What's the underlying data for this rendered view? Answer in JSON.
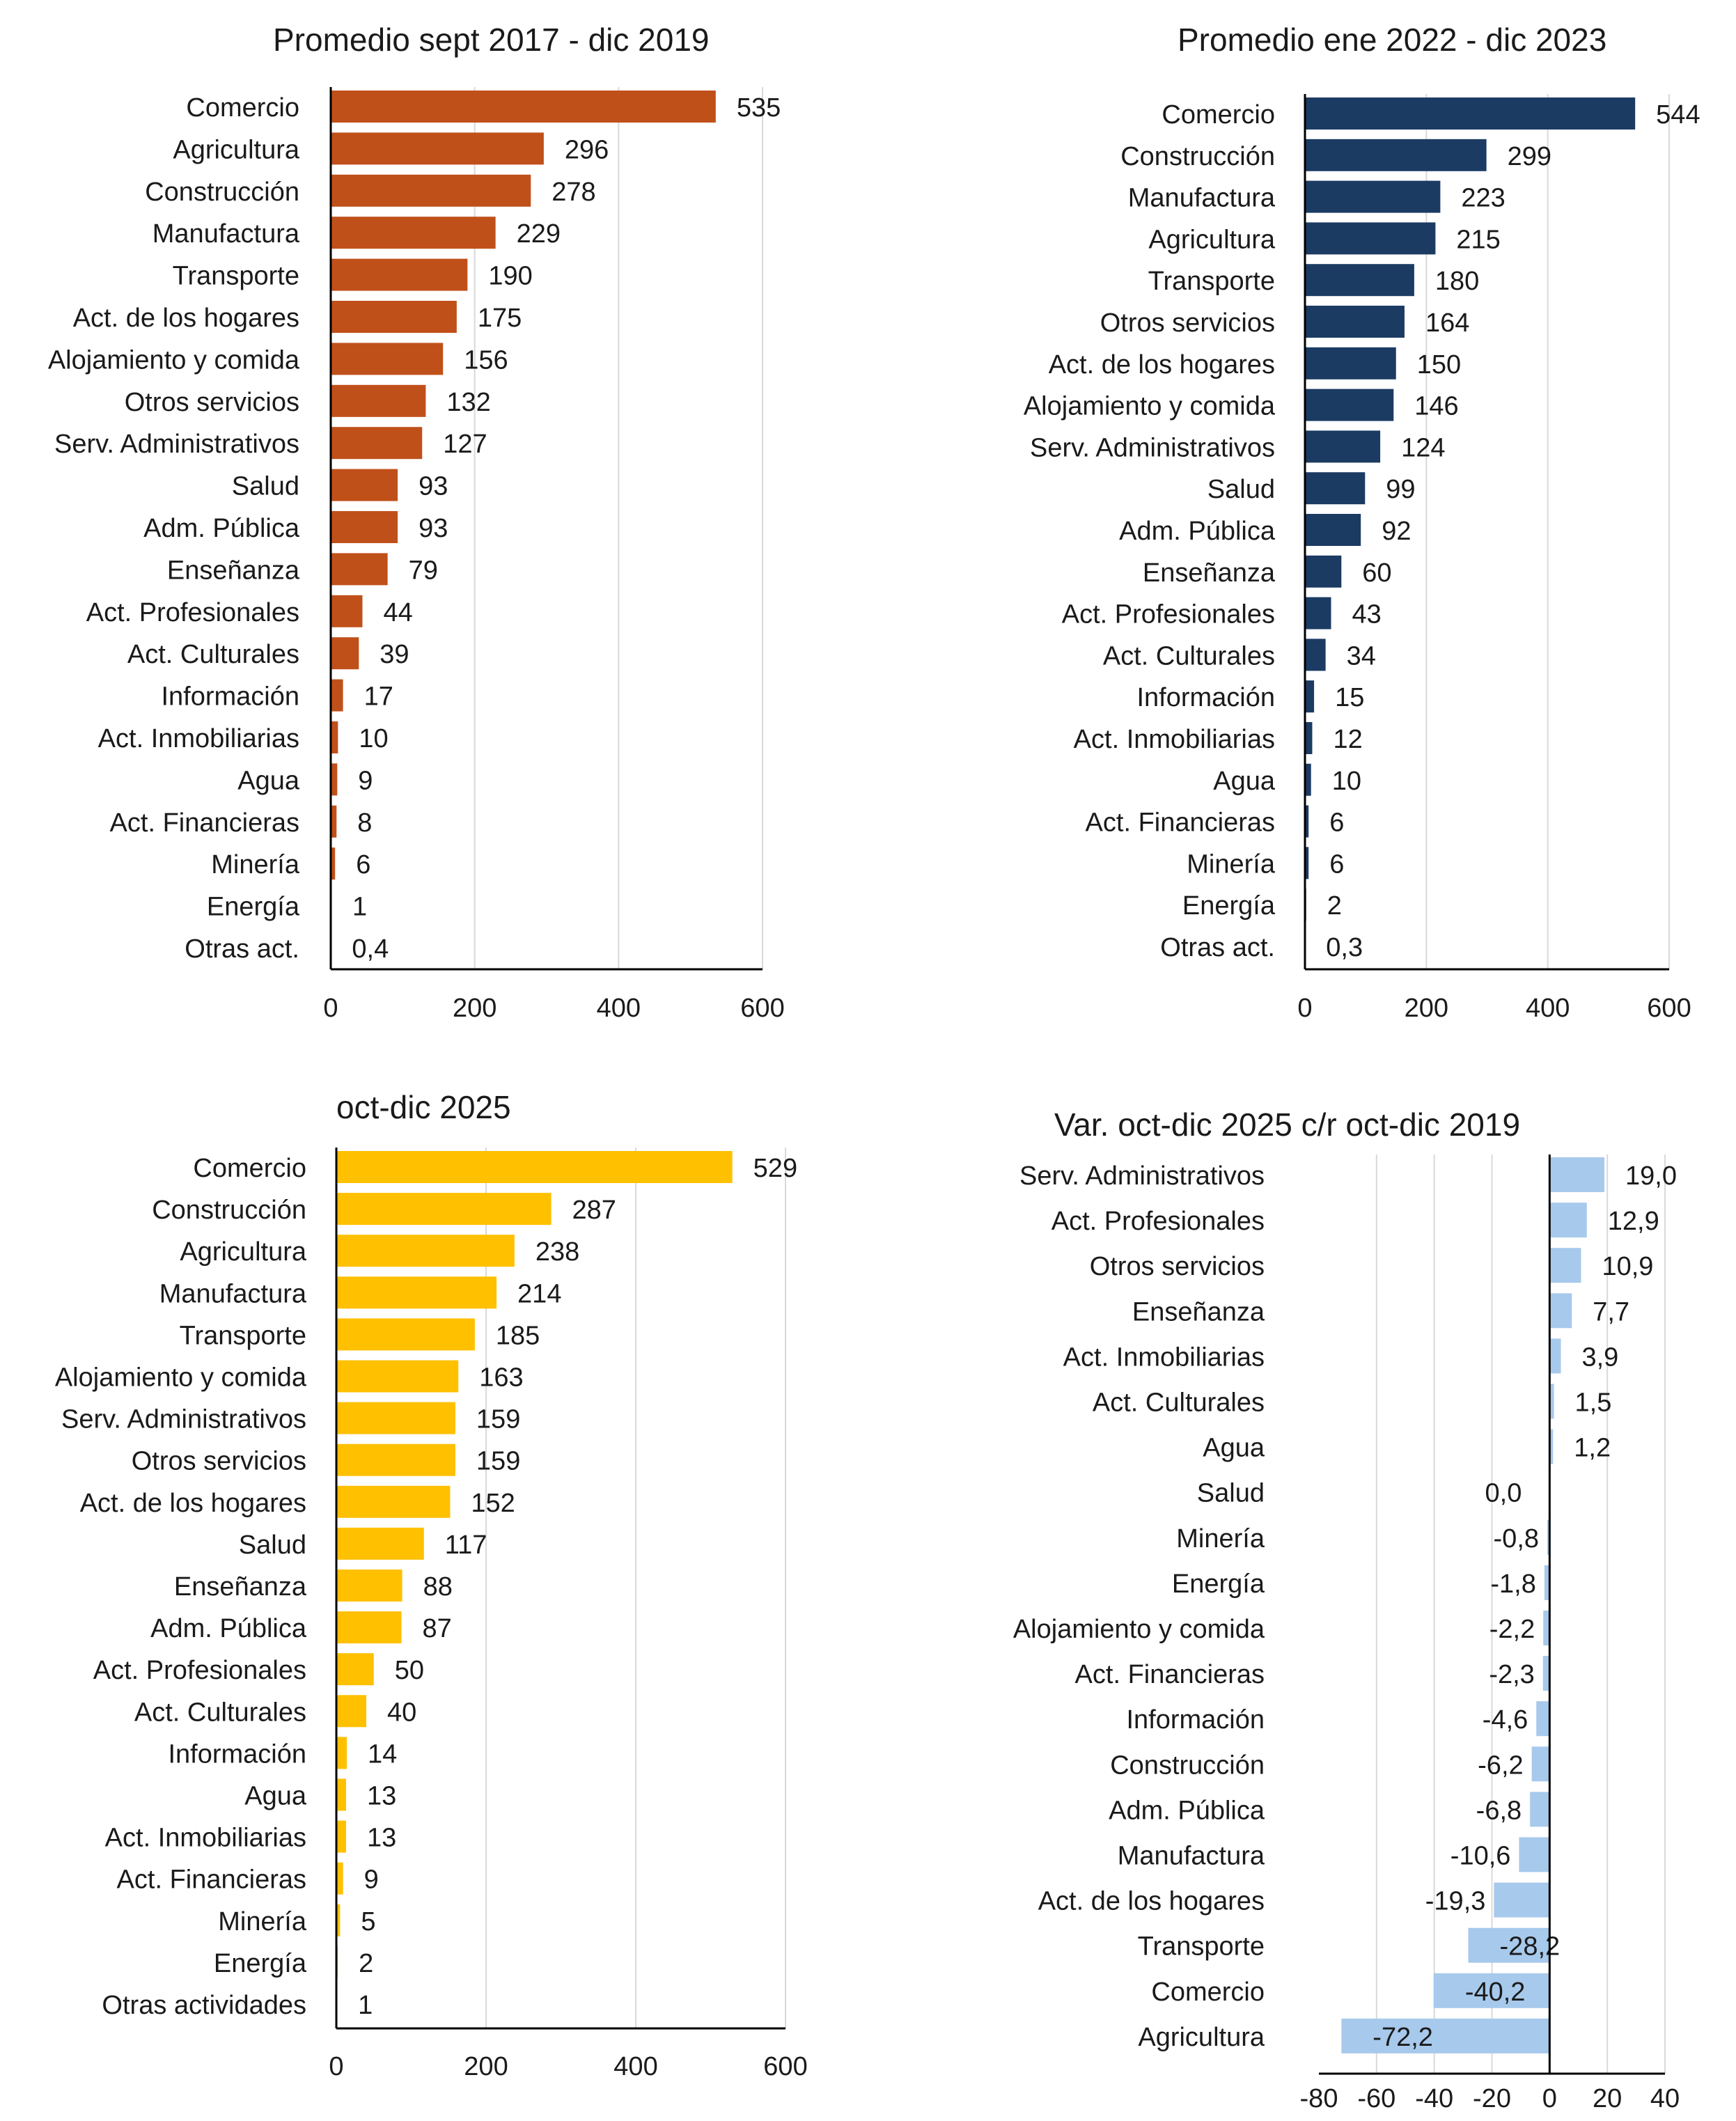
{
  "colors": {
    "panel1": "#c0501a",
    "panel2": "#1b3b63",
    "panel3": "#ffc000",
    "panel4": "#a7c9ec",
    "grid": "#d9d9d9",
    "axis": "#000000"
  },
  "chart_data": [
    {
      "type": "bar",
      "orientation": "horizontal",
      "title": "Promedio sept 2017 - dic 2019",
      "categories": [
        "Comercio",
        "Agricultura",
        "Construcción",
        "Manufactura",
        "Transporte",
        "Act. de los hogares",
        "Alojamiento y comida",
        "Otros servicios",
        "Serv. Administrativos",
        "Salud",
        "Adm. Pública",
        "Enseñanza",
        "Act. Profesionales",
        "Act. Culturales",
        "Información",
        "Act. Inmobiliarias",
        "Agua",
        "Act. Financieras",
        "Minería",
        "Energía",
        "Otras act."
      ],
      "values": [
        535,
        296,
        278,
        229,
        190,
        175,
        156,
        132,
        127,
        93,
        93,
        79,
        44,
        39,
        17,
        10,
        9,
        8,
        6,
        1,
        0.4
      ],
      "value_labels": [
        "535",
        "296",
        "278",
        "229",
        "190",
        "175",
        "156",
        "132",
        "127",
        "93",
        "93",
        "79",
        "44",
        "39",
        "17",
        "10",
        "9",
        "8",
        "6",
        "1",
        "0,4"
      ],
      "xlim": [
        0,
        600
      ],
      "ticks": [
        0,
        200,
        400,
        600
      ],
      "tick_labels": [
        "0",
        "200",
        "400",
        "600"
      ]
    },
    {
      "type": "bar",
      "orientation": "horizontal",
      "title": "Promedio ene 2022 - dic 2023",
      "categories": [
        "Comercio",
        "Construcción",
        "Manufactura",
        "Agricultura",
        "Transporte",
        "Otros servicios",
        "Act. de los hogares",
        "Alojamiento y comida",
        "Serv. Administrativos",
        "Salud",
        "Adm. Pública",
        "Enseñanza",
        "Act. Profesionales",
        "Act. Culturales",
        "Información",
        "Act. Inmobiliarias",
        "Agua",
        "Act. Financieras",
        "Minería",
        "Energía",
        "Otras act."
      ],
      "values": [
        544,
        299,
        223,
        215,
        180,
        164,
        150,
        146,
        124,
        99,
        92,
        60,
        43,
        34,
        15,
        12,
        10,
        6,
        6,
        2,
        0.3
      ],
      "value_labels": [
        "544",
        "299",
        "223",
        "215",
        "180",
        "164",
        "150",
        "146",
        "124",
        "99",
        "92",
        "60",
        "43",
        "34",
        "15",
        "12",
        "10",
        "6",
        "6",
        "2",
        "0,3"
      ],
      "xlim": [
        0,
        600
      ],
      "ticks": [
        0,
        200,
        400,
        600
      ],
      "tick_labels": [
        "0",
        "200",
        "400",
        "600"
      ]
    },
    {
      "type": "bar",
      "orientation": "horizontal",
      "title": "oct-dic 2025",
      "categories": [
        "Comercio",
        "Construcción",
        "Agricultura",
        "Manufactura",
        "Transporte",
        "Alojamiento y comida",
        "Serv. Administrativos",
        "Otros servicios",
        "Act. de los hogares",
        "Salud",
        "Enseñanza",
        "Adm. Pública",
        "Act. Profesionales",
        "Act. Culturales",
        "Información",
        "Agua",
        "Act. Inmobiliarias",
        "Act. Financieras",
        "Minería",
        "Energía",
        "Otras actividades"
      ],
      "values": [
        529,
        287,
        238,
        214,
        185,
        163,
        159,
        159,
        152,
        117,
        88,
        87,
        50,
        40,
        14,
        13,
        13,
        9,
        5,
        2,
        1
      ],
      "value_labels": [
        "529",
        "287",
        "238",
        "214",
        "185",
        "163",
        "159",
        "159",
        "152",
        "117",
        "88",
        "87",
        "50",
        "40",
        "14",
        "13",
        "13",
        "9",
        "5",
        "2",
        "1"
      ],
      "xlim": [
        0,
        600
      ],
      "ticks": [
        0,
        200,
        400,
        600
      ],
      "tick_labels": [
        "0",
        "200",
        "400",
        "600"
      ]
    },
    {
      "type": "bar",
      "orientation": "horizontal",
      "title": "Var. oct-dic 2025 c/r oct-dic 2019",
      "categories": [
        "Serv. Administrativos",
        "Act. Profesionales",
        "Otros servicios",
        "Enseñanza",
        "Act. Inmobiliarias",
        "Act. Culturales",
        "Agua",
        "Salud",
        "Minería",
        "Energía",
        "Alojamiento y comida",
        "Act. Financieras",
        "Información",
        "Construcción",
        "Adm. Pública",
        "Manufactura",
        "Act. de los hogares",
        "Transporte",
        "Comercio",
        "Agricultura"
      ],
      "values": [
        19.0,
        12.9,
        10.9,
        7.7,
        3.9,
        1.5,
        1.2,
        0.0,
        -0.8,
        -1.8,
        -2.2,
        -2.3,
        -4.6,
        -6.2,
        -6.8,
        -10.6,
        -19.3,
        -28.2,
        -40.2,
        -72.2
      ],
      "value_labels": [
        "19,0",
        "12,9",
        "10,9",
        "7,7",
        "3,9",
        "1,5",
        "1,2",
        "0,0",
        "-0,8",
        "-1,8",
        "-2,2",
        "-2,3",
        "-4,6",
        "-6,2",
        "-6,8",
        "-10,6",
        "-19,3",
        "-28,2",
        "-40,2",
        "-72,2"
      ],
      "xlim": [
        -80,
        40
      ],
      "ticks": [
        -80,
        -60,
        -40,
        -20,
        0,
        20,
        40
      ],
      "tick_labels": [
        "-80",
        "-60",
        "-40",
        "-20",
        "0",
        "20",
        "40"
      ]
    }
  ]
}
